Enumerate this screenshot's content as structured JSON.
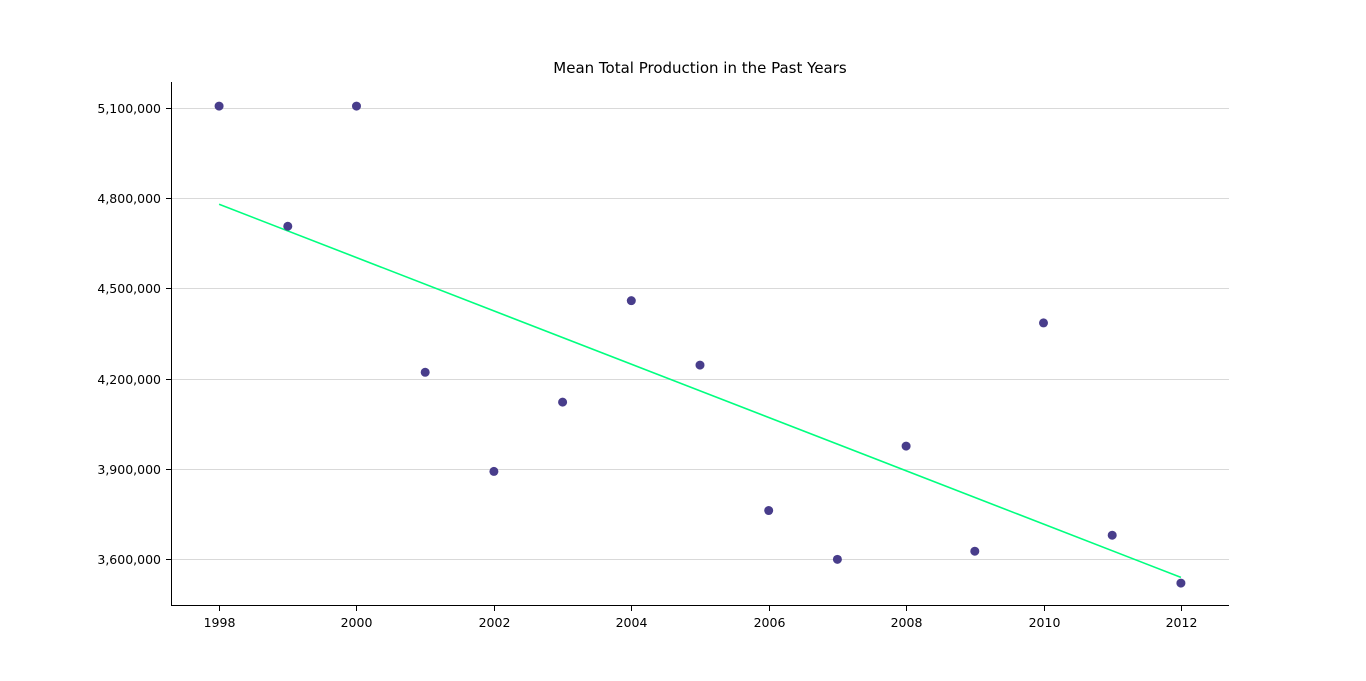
{
  "chart_data": {
    "type": "scatter",
    "title": "Mean Total Production in the Past Years",
    "xlabel": "",
    "ylabel": "",
    "x": [
      1998,
      1999,
      2000,
      2001,
      2002,
      2003,
      2004,
      2005,
      2006,
      2007,
      2008,
      2009,
      2010,
      2011,
      2012
    ],
    "y": [
      5105000,
      4706000,
      5105000,
      4221000,
      3892000,
      4122000,
      4459000,
      4245000,
      3762000,
      3600000,
      3976000,
      3627000,
      4385000,
      3680000,
      3521000
    ],
    "trendline": {
      "x": [
        1998,
        2012
      ],
      "y": [
        4779000,
        3540000
      ]
    },
    "xticks": [
      1998,
      2000,
      2002,
      2004,
      2006,
      2008,
      2010,
      2012
    ],
    "xtick_labels": [
      "1998",
      "2000",
      "2002",
      "2004",
      "2006",
      "2008",
      "2010",
      "2012"
    ],
    "yticks": [
      3600000,
      3900000,
      4200000,
      4500000,
      4800000,
      5100000
    ],
    "ytick_labels": [
      "3,600,000",
      "3,900,000",
      "4,200,000",
      "4,500,000",
      "4,800,000",
      "5,100,000"
    ],
    "xlim": [
      1997.3,
      2012.7
    ],
    "ylim": [
      3445000,
      5185000
    ],
    "grid": "horizontal",
    "point_color": "#483d8b",
    "trend_color": "#00ff7f"
  }
}
